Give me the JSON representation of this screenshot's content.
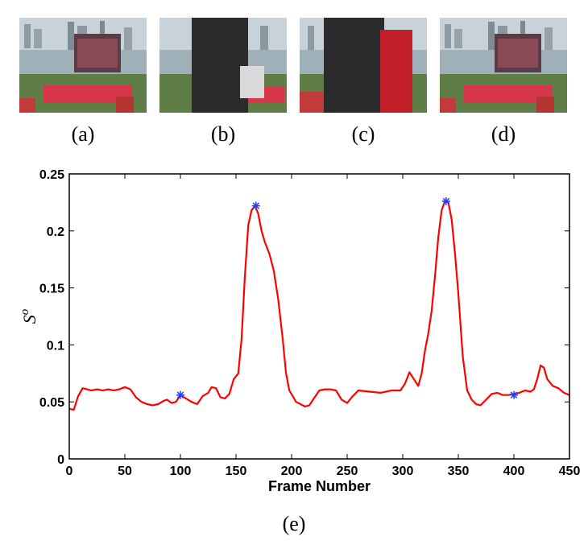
{
  "panels": [
    {
      "label": "(a)",
      "scene": "stage"
    },
    {
      "label": "(b)",
      "scene": "person-occluding"
    },
    {
      "label": "(c)",
      "scene": "person-with-flag"
    },
    {
      "label": "(d)",
      "scene": "stage"
    }
  ],
  "caption": "(e)",
  "chart_data": {
    "type": "line",
    "title": "",
    "xlabel": "Frame Number",
    "ylabel": "S",
    "ylabel_superscript": "o",
    "xlim": [
      0,
      450
    ],
    "ylim": [
      0,
      0.25
    ],
    "xticks": [
      0,
      50,
      100,
      150,
      200,
      250,
      300,
      350,
      400,
      450
    ],
    "yticks": [
      0,
      0.05,
      0.1,
      0.15,
      0.2,
      0.25
    ],
    "ytick_labels": [
      "0",
      "0.05",
      "0.1",
      "0.15",
      "0.2",
      "0.25"
    ],
    "grid": false,
    "line_color": "#ff0000",
    "marker_color": "#1f3fff",
    "series": [
      {
        "x": [
          0,
          4,
          8,
          12,
          16,
          20,
          25,
          30,
          35,
          40,
          45,
          50,
          55,
          60,
          65,
          70,
          75,
          80,
          85,
          88,
          92,
          96,
          100,
          105,
          110,
          115,
          120,
          125,
          128,
          132,
          136,
          140,
          144,
          148,
          152,
          155,
          158,
          161,
          164,
          167,
          170,
          173,
          176,
          180,
          184,
          188,
          192,
          195,
          198,
          201,
          204,
          208,
          212,
          216,
          220,
          225,
          230,
          235,
          240,
          245,
          250,
          255,
          260,
          270,
          280,
          290,
          298,
          302,
          306,
          310,
          314,
          317,
          320,
          323,
          326,
          329,
          332,
          335,
          338,
          341,
          344,
          347,
          350,
          354,
          358,
          362,
          366,
          370,
          375,
          380,
          385,
          390,
          395,
          400,
          405,
          410,
          415,
          418,
          421,
          424,
          427,
          430,
          435,
          440,
          445,
          450
        ],
        "y": [
          0.044,
          0.043,
          0.055,
          0.062,
          0.061,
          0.06,
          0.061,
          0.06,
          0.061,
          0.06,
          0.061,
          0.063,
          0.061,
          0.054,
          0.05,
          0.048,
          0.047,
          0.048,
          0.051,
          0.052,
          0.049,
          0.05,
          0.056,
          0.053,
          0.05,
          0.048,
          0.055,
          0.058,
          0.063,
          0.062,
          0.054,
          0.053,
          0.057,
          0.07,
          0.075,
          0.105,
          0.16,
          0.205,
          0.218,
          0.222,
          0.215,
          0.2,
          0.19,
          0.18,
          0.165,
          0.14,
          0.105,
          0.075,
          0.06,
          0.055,
          0.05,
          0.048,
          0.046,
          0.047,
          0.053,
          0.06,
          0.061,
          0.061,
          0.06,
          0.052,
          0.049,
          0.055,
          0.06,
          0.059,
          0.058,
          0.06,
          0.06,
          0.066,
          0.076,
          0.07,
          0.064,
          0.075,
          0.095,
          0.11,
          0.13,
          0.16,
          0.195,
          0.218,
          0.226,
          0.225,
          0.21,
          0.18,
          0.145,
          0.09,
          0.06,
          0.052,
          0.048,
          0.047,
          0.052,
          0.057,
          0.058,
          0.056,
          0.056,
          0.057,
          0.058,
          0.06,
          0.059,
          0.061,
          0.07,
          0.082,
          0.08,
          0.07,
          0.064,
          0.062,
          0.058,
          0.056
        ]
      }
    ],
    "markers": [
      {
        "x": 100,
        "y": 0.056
      },
      {
        "x": 168,
        "y": 0.222
      },
      {
        "x": 339,
        "y": 0.226
      },
      {
        "x": 400,
        "y": 0.056
      }
    ]
  }
}
